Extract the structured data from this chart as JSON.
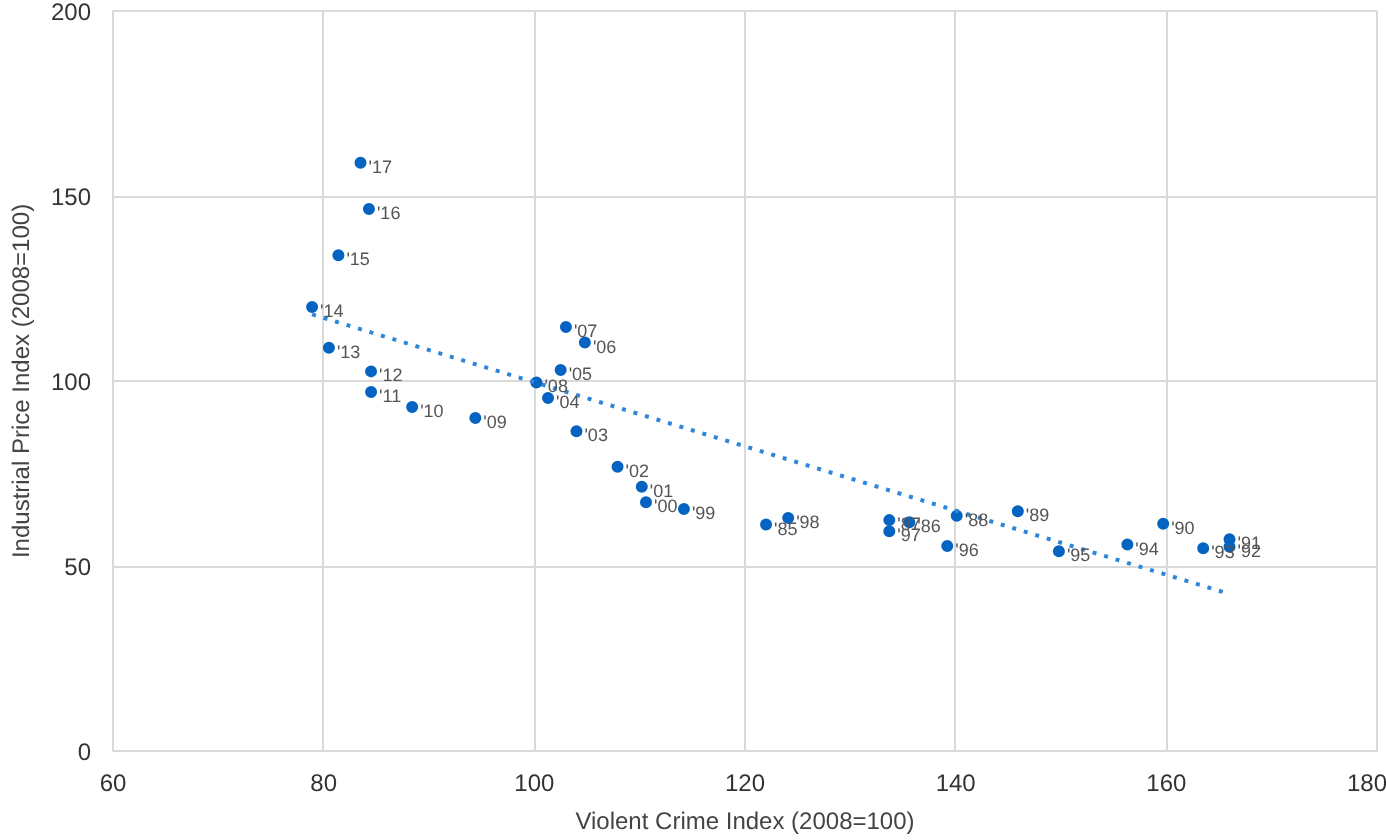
{
  "chart_data": {
    "type": "scatter",
    "xlabel": "Violent Crime Index (2008=100)",
    "ylabel": "Industrial Price Index (2008=100)",
    "xlim": [
      60,
      180
    ],
    "xticks": [
      60,
      80,
      100,
      120,
      140,
      160,
      180
    ],
    "ylim": [
      0,
      200
    ],
    "yticks": [
      0,
      50,
      100,
      150,
      200
    ],
    "grid": true,
    "marker": "circle",
    "series": [
      {
        "color": "#0563c1",
        "x": [
          83.5,
          84.3,
          81.4,
          78.9,
          80.5,
          84.5,
          84.5,
          88.4,
          94.4,
          100.2,
          101.3,
          102.5,
          103,
          104.8,
          104,
          107.9,
          110.2,
          110.6,
          114.2,
          122,
          124.1,
          133.7,
          133.7,
          135.6,
          140.1,
          139.2,
          145.9,
          149.8,
          156.3,
          159.7,
          163.5,
          166,
          166
        ],
        "values": [
          159,
          146.5,
          134,
          120,
          109,
          102.6,
          97,
          93,
          90,
          99.6,
          95.4,
          103,
          114.6,
          110.4,
          86.4,
          76.8,
          71.4,
          67.2,
          65.4,
          61.2,
          63,
          62.4,
          59.4,
          61.8,
          63.6,
          55.4,
          64.8,
          54,
          55.8,
          61.4,
          54.8,
          57.2,
          55.2
        ]
      },
      {
        "type": "line",
        "marker": "none",
        "color": "#2e86d9",
        "line_style": "dotted",
        "x": [
          78.9,
          165.8
        ],
        "values": [
          118,
          42.6
        ]
      }
    ],
    "annotations": [
      {
        "text": "'17",
        "x": 83.5,
        "y": 159
      },
      {
        "text": "'16",
        "x": 84.3,
        "y": 146.5
      },
      {
        "text": "'15",
        "x": 81.4,
        "y": 134
      },
      {
        "text": "'14",
        "x": 78.9,
        "y": 120
      },
      {
        "text": "'13",
        "x": 80.5,
        "y": 109
      },
      {
        "text": "'12",
        "x": 84.5,
        "y": 102.6
      },
      {
        "text": "'11",
        "x": 84.5,
        "y": 97
      },
      {
        "text": "'10",
        "x": 88.4,
        "y": 93
      },
      {
        "text": "'09",
        "x": 94.4,
        "y": 90
      },
      {
        "text": "'08",
        "x": 100.2,
        "y": 99.6
      },
      {
        "text": "'04",
        "x": 101.3,
        "y": 95.4
      },
      {
        "text": "'05",
        "x": 102.5,
        "y": 103
      },
      {
        "text": "'07",
        "x": 103,
        "y": 114.6
      },
      {
        "text": "'06",
        "x": 104.8,
        "y": 110.4
      },
      {
        "text": "'03",
        "x": 104,
        "y": 86.4
      },
      {
        "text": "'02",
        "x": 107.9,
        "y": 76.8
      },
      {
        "text": "'01",
        "x": 110.2,
        "y": 71.4
      },
      {
        "text": "'00",
        "x": 110.6,
        "y": 67.2
      },
      {
        "text": "'99",
        "x": 114.2,
        "y": 65.4
      },
      {
        "text": "'85",
        "x": 122,
        "y": 61.2
      },
      {
        "text": "'98",
        "x": 124.1,
        "y": 63
      },
      {
        "text": "'87",
        "x": 133.7,
        "y": 62.4
      },
      {
        "text": "'97",
        "x": 133.7,
        "y": 59.4
      },
      {
        "text": "'86",
        "x": 135.6,
        "y": 61.8
      },
      {
        "text": "'88",
        "x": 140.1,
        "y": 63.6
      },
      {
        "text": "'96",
        "x": 139.2,
        "y": 55.4
      },
      {
        "text": "'89",
        "x": 145.9,
        "y": 64.8
      },
      {
        "text": "'95",
        "x": 149.8,
        "y": 54
      },
      {
        "text": "'94",
        "x": 156.3,
        "y": 55.8
      },
      {
        "text": "'90",
        "x": 159.7,
        "y": 61.4
      },
      {
        "text": "'93",
        "x": 163.5,
        "y": 54.8
      },
      {
        "text": "'91",
        "x": 166,
        "y": 57.2
      },
      {
        "text": "'92",
        "x": 166,
        "y": 55.2
      }
    ]
  }
}
